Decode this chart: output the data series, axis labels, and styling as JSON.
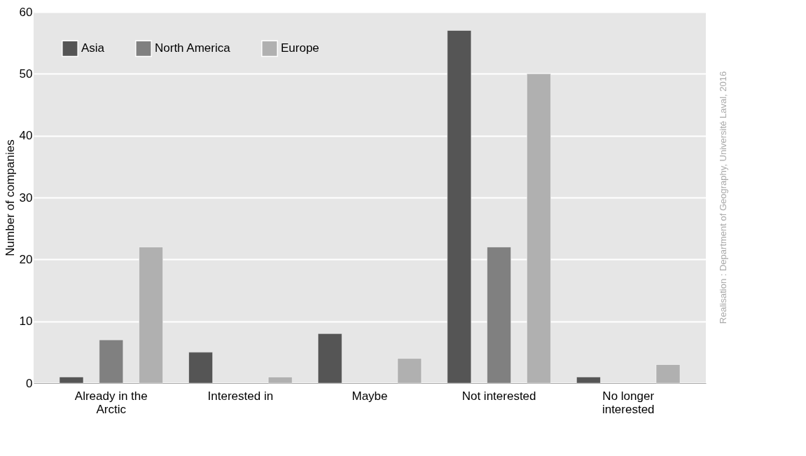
{
  "chart_data": {
    "type": "bar",
    "ylabel": "Number of companies",
    "categories": [
      "Already in the\nArctic",
      "Interested in",
      "Maybe",
      "Not interested",
      "No longer\ninterested"
    ],
    "series": [
      {
        "name": "Asia",
        "color": "#555555",
        "values": [
          1,
          5,
          8,
          57,
          1
        ]
      },
      {
        "name": "North America",
        "color": "#808080",
        "values": [
          7,
          null,
          null,
          22,
          null
        ]
      },
      {
        "name": "Europe",
        "color": "#b0b0b0",
        "values": [
          22,
          1,
          4,
          50,
          3
        ]
      }
    ],
    "ylim": [
      0,
      60
    ],
    "yticks": [
      0,
      10,
      20,
      30,
      40,
      50,
      60
    ],
    "grid": "y",
    "legend": "top left",
    "annotations": [
      "Realisation : Department of Geography, Université Laval, 2016"
    ]
  }
}
